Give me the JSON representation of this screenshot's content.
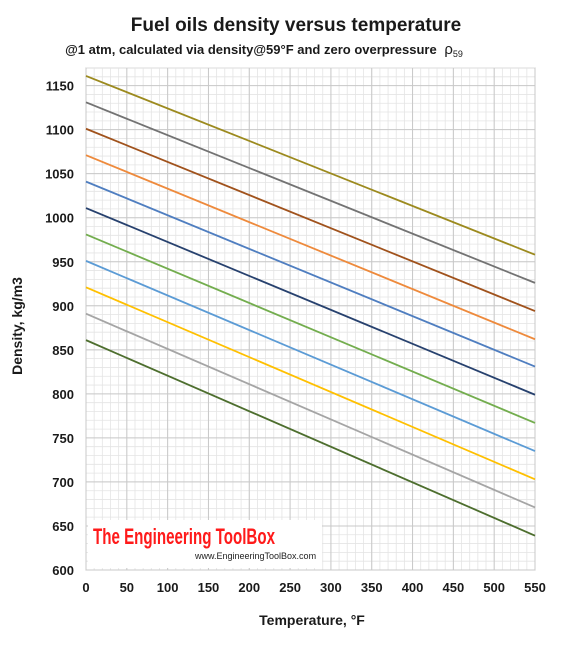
{
  "chart_data": {
    "type": "line",
    "title": "Fuel oils density versus temperature",
    "subtitle": "@1 atm, calculated via density@59°F and zero overpressure",
    "subtitle_symbol": "ρ",
    "subtitle_symbol_sub": "59",
    "xlabel": "Temperature, °F",
    "ylabel": "Density, kg/m3",
    "xlim": [
      0,
      550
    ],
    "ylim": [
      600,
      1170
    ],
    "x_ticks": [
      0,
      50,
      100,
      150,
      200,
      250,
      300,
      350,
      400,
      450,
      500,
      550
    ],
    "y_ticks": [
      600,
      650,
      700,
      750,
      800,
      850,
      900,
      950,
      1000,
      1050,
      1100,
      1150
    ],
    "grid": true,
    "x": [
      0,
      550
    ],
    "series": [
      {
        "color": "#9c8a1e",
        "values": [
          1161,
          958
        ]
      },
      {
        "color": "#737373",
        "values": [
          1131,
          926
        ]
      },
      {
        "color": "#a0521c",
        "values": [
          1101,
          894
        ]
      },
      {
        "color": "#ee8a3c",
        "values": [
          1071,
          862
        ]
      },
      {
        "color": "#4f7ec0",
        "values": [
          1041,
          831
        ]
      },
      {
        "color": "#27416e",
        "values": [
          1011,
          799
        ]
      },
      {
        "color": "#73ad4e",
        "values": [
          981,
          767
        ]
      },
      {
        "color": "#5b9bd5",
        "values": [
          951,
          735
        ]
      },
      {
        "color": "#ffc000",
        "values": [
          921,
          703
        ]
      },
      {
        "color": "#a5a5a5",
        "values": [
          891,
          671
        ]
      },
      {
        "color": "#4d6e2e",
        "values": [
          861,
          639
        ]
      }
    ]
  },
  "watermark": {
    "brand": "The Engineering ToolBox",
    "url": "www.EngineeringToolBox.com"
  }
}
